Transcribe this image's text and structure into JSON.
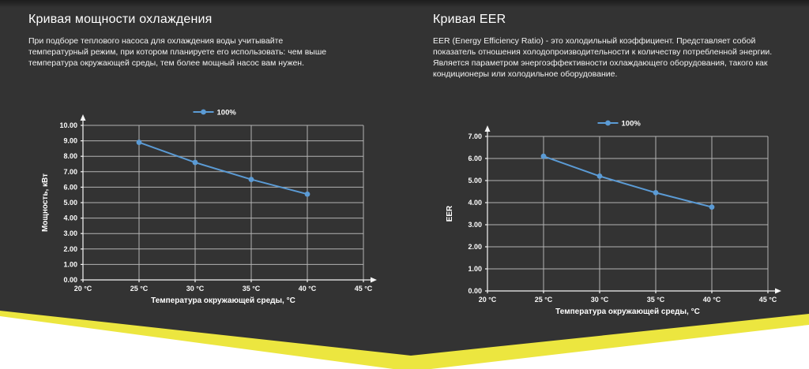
{
  "theme": {
    "panel_color": "#333333",
    "background_color": "#ffffff",
    "accent_yellow": "#ece63f",
    "line_blue": "#5b9bd5",
    "grid_color": "#b3b3b3",
    "axis_color": "#f5f5f5",
    "text_color": "#ffffff"
  },
  "sections": [
    {
      "title": "Кривая мощности охлаждения",
      "description": "При подборе теплового насоса для охлаждения воды учитывайте температурный режим, при котором планируете его использовать: чем выше температура окружающей среды, тем более мощный насос вам нужен."
    },
    {
      "title": "Кривая EER",
      "description": "EER (Energy Efficiency Ratio) - это холодильный коэффициент. Представляет собой показатель отношения холодопроизводительности к количеству потребленной энергии. Является параметром энергоэффективности охлаждающего оборудования, такого как кондиционеры или холодильное оборудование."
    }
  ],
  "chart_data": [
    {
      "type": "line",
      "xlabel": "Температура окружающей среды, °C",
      "ylabel": "Мощность, кВт",
      "xlim": [
        20,
        45
      ],
      "ylim": [
        0,
        10
      ],
      "x_tick_values": [
        20,
        25,
        30,
        35,
        40,
        45
      ],
      "x_tick_labels": [
        "20 °C",
        "25 °C",
        "30 °C",
        "35 °C",
        "40 °C",
        "45 °C"
      ],
      "y_tick_step": 1,
      "y_tick_decimals": 2,
      "grid": true,
      "legend_position": "top-center",
      "series": [
        {
          "name": "100%",
          "color": "#5b9bd5",
          "points": [
            {
              "x": 25,
              "y": 8.9
            },
            {
              "x": 30,
              "y": 7.6
            },
            {
              "x": 35,
              "y": 6.5
            },
            {
              "x": 40,
              "y": 5.55
            }
          ]
        }
      ]
    },
    {
      "type": "line",
      "xlabel": "Температура окружающей среды, °C",
      "ylabel": "EER",
      "xlim": [
        20,
        45
      ],
      "ylim": [
        0,
        7
      ],
      "x_tick_values": [
        20,
        25,
        30,
        35,
        40,
        45
      ],
      "x_tick_labels": [
        "20 °C",
        "25 °C",
        "30 °C",
        "35 °C",
        "40 °C",
        "45 °C"
      ],
      "y_tick_step": 1,
      "y_tick_decimals": 2,
      "grid": true,
      "legend_position": "top-center",
      "series": [
        {
          "name": "100%",
          "color": "#5b9bd5",
          "points": [
            {
              "x": 25,
              "y": 6.1
            },
            {
              "x": 30,
              "y": 5.2
            },
            {
              "x": 35,
              "y": 4.45
            },
            {
              "x": 40,
              "y": 3.8
            }
          ]
        }
      ]
    }
  ]
}
